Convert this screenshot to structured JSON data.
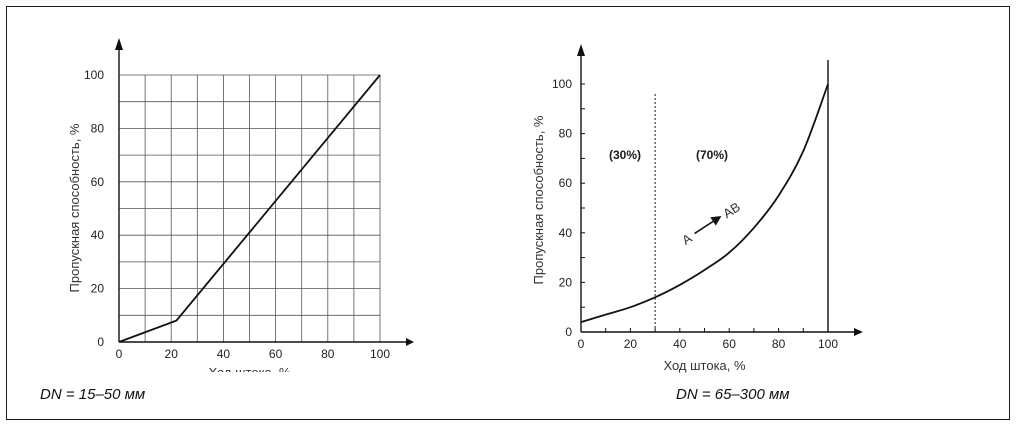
{
  "chart_data": [
    {
      "type": "line",
      "caption": "DN = 15–50 мм",
      "xlabel": "Ход штока, %",
      "ylabel": "Пропускная способность, %",
      "x_ticks": [
        0,
        20,
        40,
        60,
        80,
        100
      ],
      "y_ticks": [
        0,
        20,
        40,
        60,
        80,
        100
      ],
      "xlim": [
        0,
        100
      ],
      "ylim": [
        0,
        100
      ],
      "grid": true,
      "series": [
        {
          "x": [
            0,
            22,
            100
          ],
          "y": [
            0,
            8,
            100
          ]
        }
      ]
    },
    {
      "type": "line",
      "caption": "DN = 65–300 мм",
      "xlabel": "Ход штока, %",
      "ylabel": "Пропускная способность, %",
      "x_ticks": [
        0,
        20,
        40,
        60,
        80,
        100
      ],
      "y_ticks": [
        0,
        20,
        40,
        60,
        80,
        100
      ],
      "xlim": [
        0,
        100
      ],
      "ylim": [
        0,
        100
      ],
      "grid": false,
      "zones": [
        {
          "label": "(30%)",
          "from": 0,
          "to": 30
        },
        {
          "label": "(70%)",
          "from": 30,
          "to": 100
        }
      ],
      "divider_x": 30,
      "annotation": {
        "from": "A",
        "to": "AB"
      },
      "series": [
        {
          "x": [
            0,
            10,
            20,
            30,
            40,
            50,
            60,
            70,
            80,
            90,
            100
          ],
          "y": [
            4,
            7,
            10,
            14,
            19,
            25,
            32,
            42,
            55,
            73,
            100
          ]
        }
      ]
    }
  ]
}
